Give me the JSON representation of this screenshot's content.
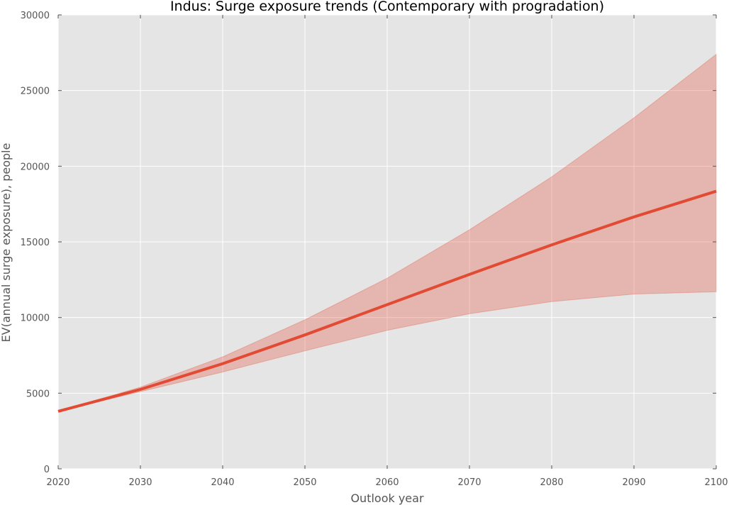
{
  "chart_data": {
    "type": "line",
    "title": "Indus: Surge exposure trends (Contemporary with progradation)",
    "xlabel": "Outlook year",
    "ylabel": "EV(annual surge exposure), people",
    "xlim": [
      2020,
      2100
    ],
    "ylim": [
      0,
      30000
    ],
    "x_ticks": [
      2020,
      2030,
      2040,
      2050,
      2060,
      2070,
      2080,
      2090,
      2100
    ],
    "y_ticks": [
      0,
      5000,
      10000,
      15000,
      20000,
      25000,
      30000
    ],
    "grid": true,
    "x": [
      2020,
      2030,
      2040,
      2050,
      2060,
      2070,
      2080,
      2090,
      2100
    ],
    "series": [
      {
        "values": [
          3800,
          5250,
          6950,
          8850,
          10850,
          12850,
          14800,
          16650,
          18350
        ],
        "lower": [
          3800,
          5100,
          6400,
          7800,
          9150,
          10250,
          11050,
          11550,
          11700
        ],
        "upper": [
          3800,
          5400,
          7400,
          9850,
          12600,
          15800,
          19300,
          23200,
          27400
        ],
        "color": "#e24a33",
        "band_color": "#e24a33"
      }
    ],
    "background_color": "#e5e5e5"
  }
}
